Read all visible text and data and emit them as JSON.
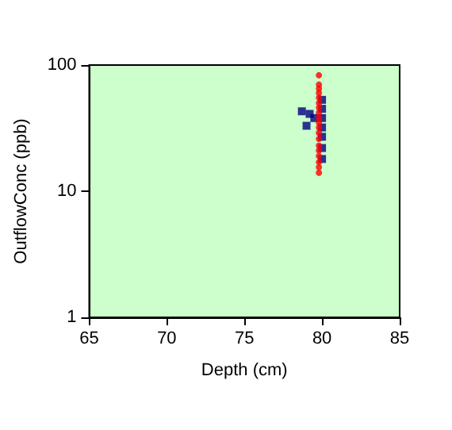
{
  "chart_data": {
    "type": "scatter",
    "xlabel": "Depth (cm)",
    "ylabel": "OutflowConc (ppb)",
    "xlim": [
      65,
      85
    ],
    "xticks": [
      65,
      70,
      75,
      80,
      85
    ],
    "ylim": [
      1,
      100
    ],
    "yticks": [
      1,
      10,
      100
    ],
    "log": "y",
    "series": [
      {
        "color": "#000080",
        "marker": "square",
        "x": [
          78.7,
          79.0,
          79.2,
          79.0,
          79.5,
          79.7,
          80.0,
          80.0,
          80.0,
          80.0,
          80.0,
          80.0,
          80.0
        ],
        "values": [
          43,
          null,
          41,
          33,
          38,
          null,
          53,
          45,
          38,
          32,
          27,
          22,
          18
        ]
      },
      {
        "color": "#ff0000",
        "marker": "circle",
        "x": [
          79.8,
          79.8,
          79.8,
          79.8,
          79.8,
          79.8,
          79.8,
          79.8,
          79.8,
          79.8,
          79.8,
          79.8,
          79.8,
          79.8,
          79.8,
          79.8,
          79.8,
          79.8,
          79.8
        ],
        "values": [
          83,
          70,
          65,
          60,
          55,
          50,
          46,
          42,
          38,
          35,
          32,
          29,
          26,
          23,
          21,
          19,
          17,
          15.5,
          14
        ]
      }
    ]
  }
}
